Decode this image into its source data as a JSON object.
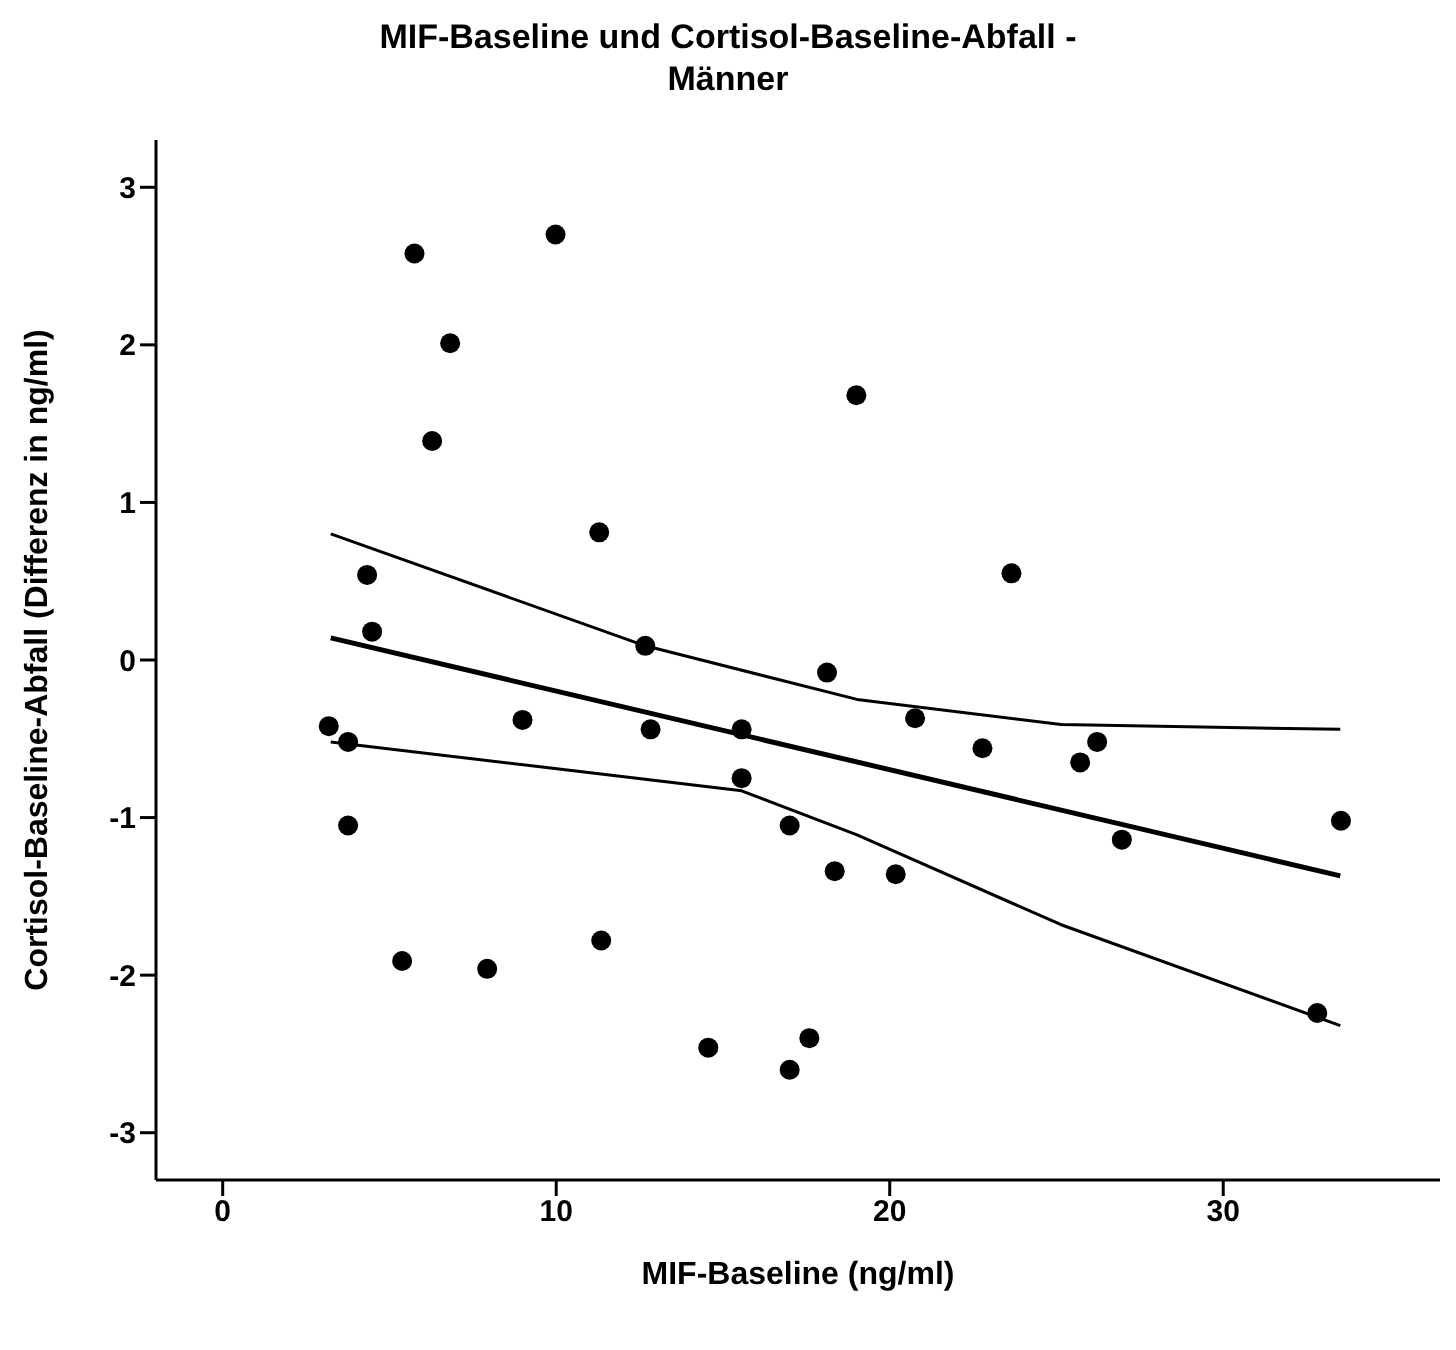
{
  "chart_data": {
    "type": "scatter",
    "title": "MIF-Baseline und Cortisol-Baseline-Abfall - Männer",
    "xlabel": "MIF-Baseline (ng/ml)",
    "ylabel": "Cortisol-Baseline-Abfall (Differenz in ng/ml)",
    "xlim": [
      -2,
      36.5
    ],
    "ylim": [
      -3.3,
      3.3
    ],
    "xticks": [
      0,
      10,
      20,
      30
    ],
    "yticks": [
      -3,
      -2,
      -1,
      0,
      1,
      2,
      3
    ],
    "grid": false,
    "legend": false,
    "marker": "circle",
    "series": [
      {
        "color": "#000000",
        "x": [
          5.75,
          9.98,
          6.82,
          6.28,
          11.29,
          4.33,
          4.48,
          12.67,
          3.18,
          3.76,
          8.99,
          12.83,
          15.56,
          15.56,
          3.76,
          17.0,
          5.38,
          7.93,
          11.35,
          14.56,
          17.0,
          19.0,
          23.65,
          18.12,
          20.76,
          22.78,
          25.71,
          26.22,
          26.96,
          18.35,
          20.18,
          33.53,
          32.82,
          17.59
        ],
        "values": [
          2.58,
          2.7,
          2.01,
          1.39,
          0.81,
          0.54,
          0.18,
          0.09,
          -0.42,
          -0.52,
          -0.38,
          -0.44,
          -0.44,
          -0.75,
          -1.05,
          -1.05,
          -1.91,
          -1.96,
          -1.78,
          -2.46,
          -2.6,
          1.68,
          0.55,
          -0.08,
          -0.37,
          -0.56,
          -0.65,
          -0.52,
          -1.14,
          -1.34,
          -1.36,
          -1.02,
          -2.24,
          -2.4
        ]
      },
      {
        "type": "line",
        "color": "#000000",
        "line_style": "solid",
        "marker": "none",
        "x": [
          3.24,
          33.51
        ],
        "values": [
          0.14,
          -1.37
        ]
      },
      {
        "type": "line",
        "color": "#000000",
        "line_style": "solid",
        "marker": "none",
        "x": [
          3.24,
          12.67,
          19.02,
          25.14,
          33.51
        ],
        "values": [
          0.8,
          0.09,
          -0.25,
          -0.41,
          -0.44
        ]
      },
      {
        "type": "line",
        "color": "#000000",
        "line_style": "solid",
        "marker": "none",
        "x": [
          3.24,
          9.2,
          15.56,
          19.02,
          25.14,
          33.51
        ],
        "values": [
          -0.52,
          -0.67,
          -0.83,
          -1.11,
          -1.68,
          -2.32
        ]
      }
    ]
  }
}
